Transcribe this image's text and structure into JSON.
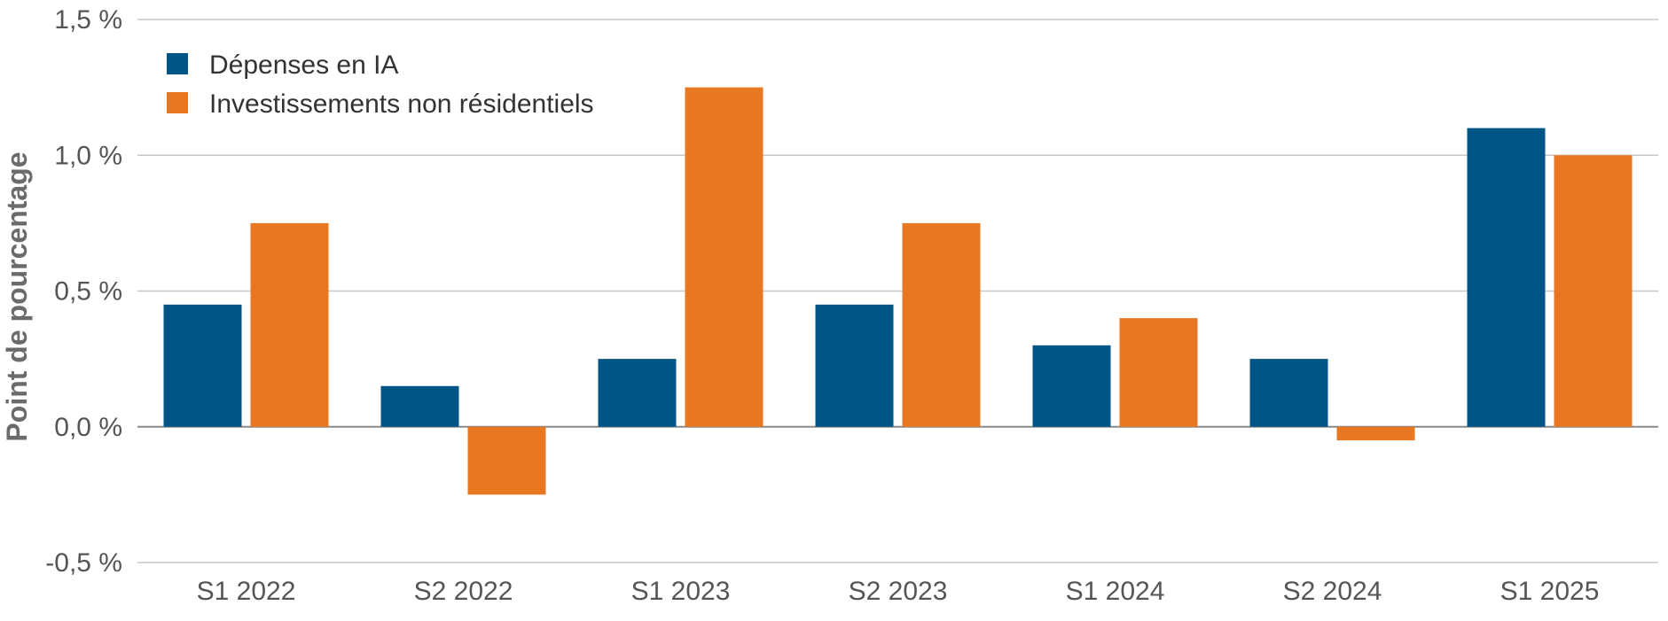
{
  "chart_data": {
    "type": "bar",
    "title": "",
    "xlabel": "",
    "ylabel": "Point de pourcentage",
    "categories": [
      "S1 2022",
      "S2 2022",
      "S1 2023",
      "S2 2023",
      "S1 2024",
      "S2 2024",
      "S1 2025"
    ],
    "series": [
      {
        "name": "Dépenses en IA",
        "color": "#005587",
        "values": [
          0.45,
          0.15,
          0.25,
          0.45,
          0.3,
          0.25,
          1.1
        ]
      },
      {
        "name": "Investissements non résidentiels",
        "color": "#E87722",
        "values": [
          0.75,
          -0.25,
          1.25,
          0.75,
          0.4,
          -0.05,
          1.0
        ]
      }
    ],
    "ylim": [
      -0.5,
      1.5
    ],
    "yticks": [
      -0.5,
      0.0,
      0.5,
      1.0,
      1.5
    ],
    "ytick_labels": [
      "-0,5 %",
      "0,0 %",
      "0,5 %",
      "1,0 %",
      "1,5 %"
    ],
    "grid": true,
    "legend_position": "top-left"
  }
}
